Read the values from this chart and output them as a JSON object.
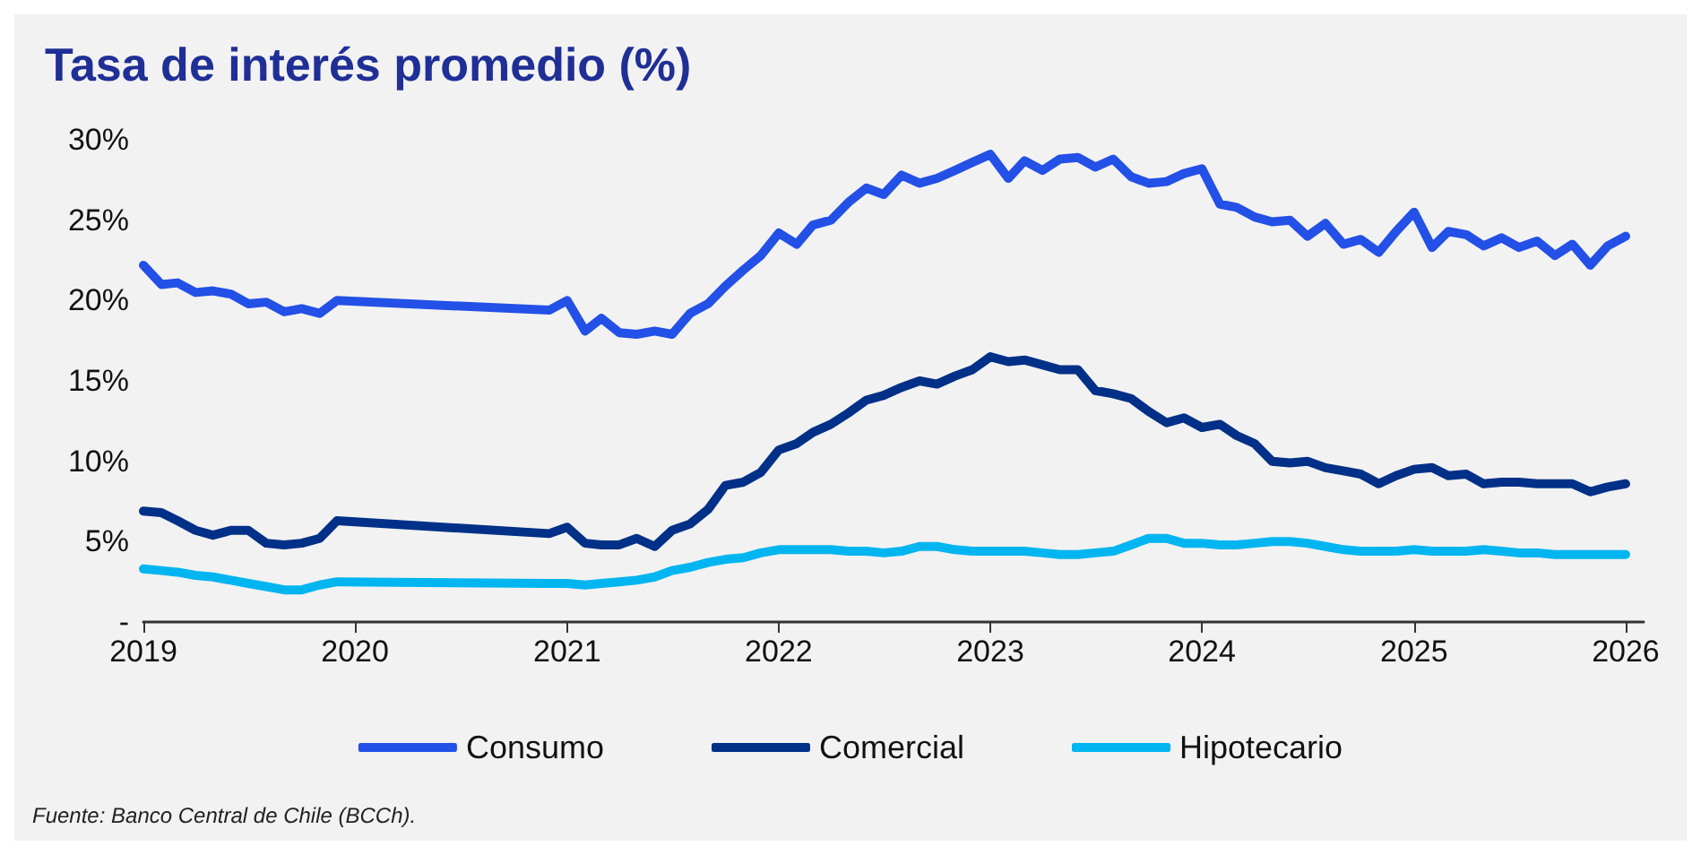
{
  "chart_data": {
    "type": "line",
    "title": "Tasa de interés promedio (%)",
    "x": [
      "2019-01",
      "2019-02",
      "2019-03",
      "2019-04",
      "2019-05",
      "2019-06",
      "2019-07",
      "2019-08",
      "2019-09",
      "2019-10",
      "2019-11",
      "2019-12",
      "2020-12",
      "2021-01",
      "2021-02",
      "2021-03",
      "2021-04",
      "2021-05",
      "2021-06",
      "2021-07",
      "2021-08",
      "2021-09",
      "2021-10",
      "2021-11",
      "2021-12",
      "2022-01",
      "2022-02",
      "2022-03",
      "2022-04",
      "2022-05",
      "2022-06",
      "2022-07",
      "2022-08",
      "2022-09",
      "2022-10",
      "2022-11",
      "2022-12",
      "2023-01",
      "2023-02",
      "2023-03",
      "2023-04",
      "2023-05",
      "2023-06",
      "2023-07",
      "2023-08",
      "2023-09",
      "2023-10",
      "2023-11",
      "2023-12",
      "2024-01",
      "2024-02",
      "2024-03",
      "2024-04",
      "2024-05",
      "2024-06",
      "2024-07",
      "2024-08",
      "2024-09",
      "2024-10",
      "2024-11",
      "2024-12",
      "2025-01",
      "2025-02",
      "2025-03",
      "2025-04",
      "2025-05",
      "2025-06",
      "2025-07",
      "2025-08",
      "2025-09",
      "2025-10",
      "2025-11",
      "2025-12",
      "2026-01"
    ],
    "series": [
      {
        "name": "Consumo",
        "color": "#2350e6",
        "values": [
          22.2,
          21.0,
          21.1,
          20.5,
          20.6,
          20.4,
          19.8,
          19.9,
          19.3,
          19.5,
          19.2,
          20.0,
          19.4,
          20.0,
          18.1,
          18.9,
          18.0,
          17.9,
          18.1,
          17.9,
          19.2,
          19.8,
          20.9,
          21.9,
          22.8,
          24.2,
          23.5,
          24.7,
          25.0,
          26.1,
          27.0,
          26.6,
          27.8,
          27.3,
          27.6,
          28.1,
          28.6,
          29.1,
          27.6,
          28.7,
          28.1,
          28.8,
          28.9,
          28.3,
          28.8,
          27.7,
          27.3,
          27.4,
          27.9,
          28.2,
          26.0,
          25.8,
          25.2,
          24.9,
          25.0,
          24.0,
          24.8,
          23.5,
          23.8,
          23.0,
          24.3,
          25.5,
          23.3,
          24.3,
          24.1,
          23.4,
          23.9,
          23.3,
          23.7,
          22.8,
          23.5,
          22.2,
          23.4,
          24.0
        ]
      },
      {
        "name": "Comercial",
        "color": "#003087",
        "values": [
          6.9,
          6.8,
          6.3,
          5.7,
          5.4,
          5.7,
          5.7,
          4.9,
          4.8,
          4.9,
          5.2,
          6.3,
          5.5,
          5.9,
          4.9,
          4.8,
          4.8,
          5.2,
          4.7,
          5.7,
          6.1,
          7.0,
          8.5,
          8.7,
          9.3,
          10.7,
          11.1,
          11.8,
          12.3,
          13.0,
          13.8,
          14.1,
          14.6,
          15.0,
          14.8,
          15.3,
          15.7,
          16.5,
          16.2,
          16.3,
          16.0,
          15.7,
          15.7,
          14.4,
          14.2,
          13.9,
          13.1,
          12.4,
          12.7,
          12.1,
          12.3,
          11.6,
          11.1,
          10.0,
          9.9,
          10.0,
          9.6,
          9.4,
          9.2,
          8.6,
          9.1,
          9.5,
          9.6,
          9.1,
          9.2,
          8.6,
          8.7,
          8.7,
          8.6,
          8.6,
          8.6,
          8.1,
          8.4,
          8.6
        ]
      },
      {
        "name": "Hipotecario",
        "color": "#00b5f0",
        "values": [
          3.3,
          3.2,
          3.1,
          2.9,
          2.8,
          2.6,
          2.4,
          2.2,
          2.0,
          2.0,
          2.3,
          2.5,
          2.4,
          2.4,
          2.3,
          2.4,
          2.5,
          2.6,
          2.8,
          3.2,
          3.4,
          3.7,
          3.9,
          4.0,
          4.3,
          4.5,
          4.5,
          4.5,
          4.5,
          4.4,
          4.4,
          4.3,
          4.4,
          4.7,
          4.7,
          4.5,
          4.4,
          4.4,
          4.4,
          4.4,
          4.3,
          4.2,
          4.2,
          4.3,
          4.4,
          4.8,
          5.2,
          5.2,
          4.9,
          4.9,
          4.8,
          4.8,
          4.9,
          5.0,
          5.0,
          4.9,
          4.7,
          4.5,
          4.4,
          4.4,
          4.4,
          4.5,
          4.4,
          4.4,
          4.4,
          4.5,
          4.4,
          4.3,
          4.3,
          4.2,
          4.2,
          4.2,
          4.2,
          4.2
        ]
      }
    ],
    "xlim": [
      "2019-01",
      "2026-02"
    ],
    "xticks": [
      "2019",
      "2020",
      "2021",
      "2022",
      "2023",
      "2024",
      "2025",
      "2026"
    ],
    "ylim": [
      0,
      30
    ],
    "yticks": [
      {
        "value": 0,
        "label": "-"
      },
      {
        "value": 5,
        "label": "5%"
      },
      {
        "value": 10,
        "label": "10%"
      },
      {
        "value": 15,
        "label": "15%"
      },
      {
        "value": 20,
        "label": "20%"
      },
      {
        "value": 25,
        "label": "25%"
      },
      {
        "value": 30,
        "label": "30%"
      }
    ],
    "grid": false,
    "legend": "bottom",
    "marker": "none",
    "line_style": "solid",
    "annotations": [
      "Fuente: Banco Central de Chile (BCCh)."
    ]
  }
}
